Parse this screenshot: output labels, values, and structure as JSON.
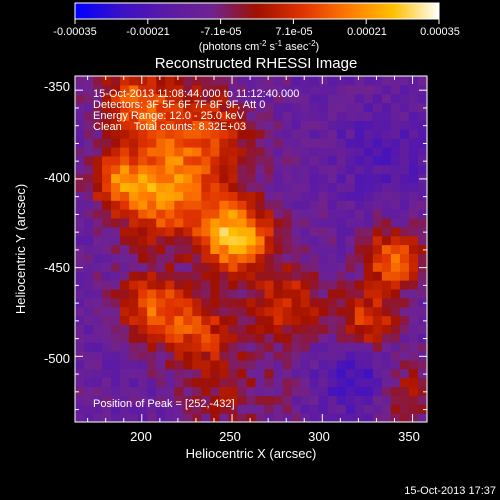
{
  "chart_data": {
    "type": "heatmap",
    "title": "Reconstructed RHESSI Image",
    "xlabel": "Heliocentric X (arcsec)",
    "ylabel": "Heliocentric Y (arcsec)",
    "xlim": [
      163,
      358
    ],
    "ylim": [
      -537,
      -342
    ],
    "x_ticks": [
      200,
      250,
      300,
      350
    ],
    "y_ticks": [
      -350,
      -400,
      -450,
      -500
    ],
    "colorbar": {
      "range": [
        -0.00035,
        0.00035
      ],
      "tick_labels": [
        "-0.00035",
        "-0.00021",
        "-7.1e-05",
        "7.1e-05",
        "0.00021",
        "0.00035"
      ],
      "unit_text": [
        "(photons cm",
        "-2",
        " s",
        "-1",
        " asec",
        "-2",
        ")"
      ],
      "colors": [
        "#0000ff",
        "#3a10c8",
        "#5a1aa6",
        "#6f2392",
        "#a01000",
        "#e03300",
        "#ff7a00",
        "#ffc000",
        "#ffffff"
      ]
    },
    "annotations": [
      "15-Oct-2013 11:08:44.000 to 11:12:40.000",
      "Detectors: 3F 5F 6F 7F 8F 9F, Att 0",
      "Energy Range: 12.0 - 25.0 keV",
      "Clean    Total counts: 8.32E+03"
    ],
    "peak_label": "Position of Peak = [252,-432]",
    "peak": [
      252,
      -432
    ],
    "features": [
      {
        "x": 252,
        "y": -432,
        "amp": 1.0,
        "sigma": 14
      },
      {
        "x": 210,
        "y": -410,
        "amp": 0.72,
        "sigma": 18
      },
      {
        "x": 230,
        "y": -375,
        "amp": 0.55,
        "sigma": 22
      },
      {
        "x": 195,
        "y": -355,
        "amp": 0.55,
        "sigma": 14
      },
      {
        "x": 205,
        "y": -470,
        "amp": 0.58,
        "sigma": 13
      },
      {
        "x": 230,
        "y": -485,
        "amp": 0.48,
        "sigma": 15
      },
      {
        "x": 280,
        "y": -470,
        "amp": 0.48,
        "sigma": 15
      },
      {
        "x": 340,
        "y": -445,
        "amp": 0.68,
        "sigma": 12
      },
      {
        "x": 325,
        "y": -480,
        "amp": 0.55,
        "sigma": 12
      },
      {
        "x": 345,
        "y": -520,
        "amp": 0.35,
        "sigma": 12
      },
      {
        "x": 250,
        "y": -520,
        "amp": 0.25,
        "sigma": 20
      },
      {
        "x": 185,
        "y": -400,
        "amp": 0.5,
        "sigma": 10
      }
    ],
    "cold_spots": [
      {
        "x": 320,
        "y": -510,
        "amp": 0.3,
        "sigma": 14
      },
      {
        "x": 335,
        "y": -385,
        "amp": 0.15,
        "sigma": 18
      }
    ]
  },
  "footer_timestamp": "15-Oct-2013 17:37"
}
